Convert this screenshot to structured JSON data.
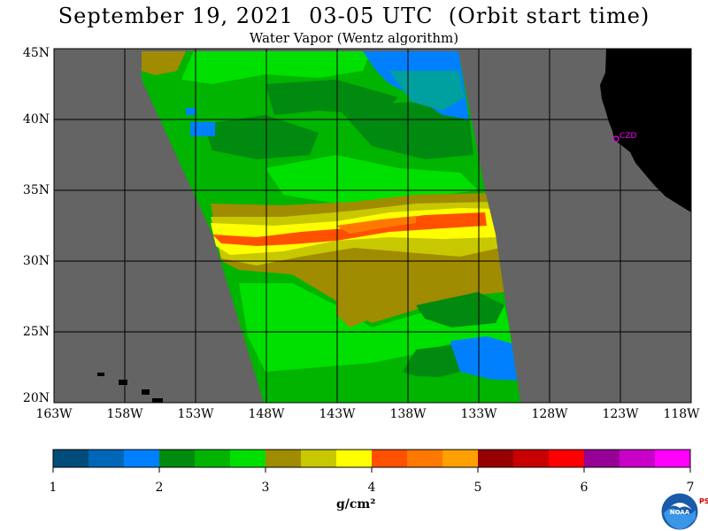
{
  "header": {
    "title": "September 19, 2021  03-05 UTC  (Orbit start time)",
    "subtitle": "Water Vapor (Wentz algorithm)"
  },
  "map": {
    "lat_labels": [
      "45N",
      "40N",
      "35N",
      "30N",
      "25N",
      "20N"
    ],
    "lon_labels": [
      "163W",
      "158W",
      "153W",
      "148W",
      "143W",
      "138W",
      "133W",
      "128W",
      "123W",
      "118W"
    ],
    "station_label": "CZD",
    "colors": {
      "ocean": "#646464",
      "land": "#000000",
      "station": "#ff00ff"
    }
  },
  "colorbar": {
    "tick_labels": [
      "1",
      "2",
      "3",
      "4",
      "5",
      "6",
      "7"
    ],
    "unit": "g/cm²",
    "colors": [
      "#004c7a",
      "#0066b8",
      "#0080ff",
      "#008a10",
      "#00b400",
      "#00e000",
      "#a08c00",
      "#c8c800",
      "#ffff00",
      "#ff5000",
      "#ff7800",
      "#ffa000",
      "#960000",
      "#c80000",
      "#ff0000",
      "#960096",
      "#c800c8",
      "#ff00ff"
    ]
  },
  "logo": {
    "label": "NOAA",
    "side_text": "PSL"
  }
}
